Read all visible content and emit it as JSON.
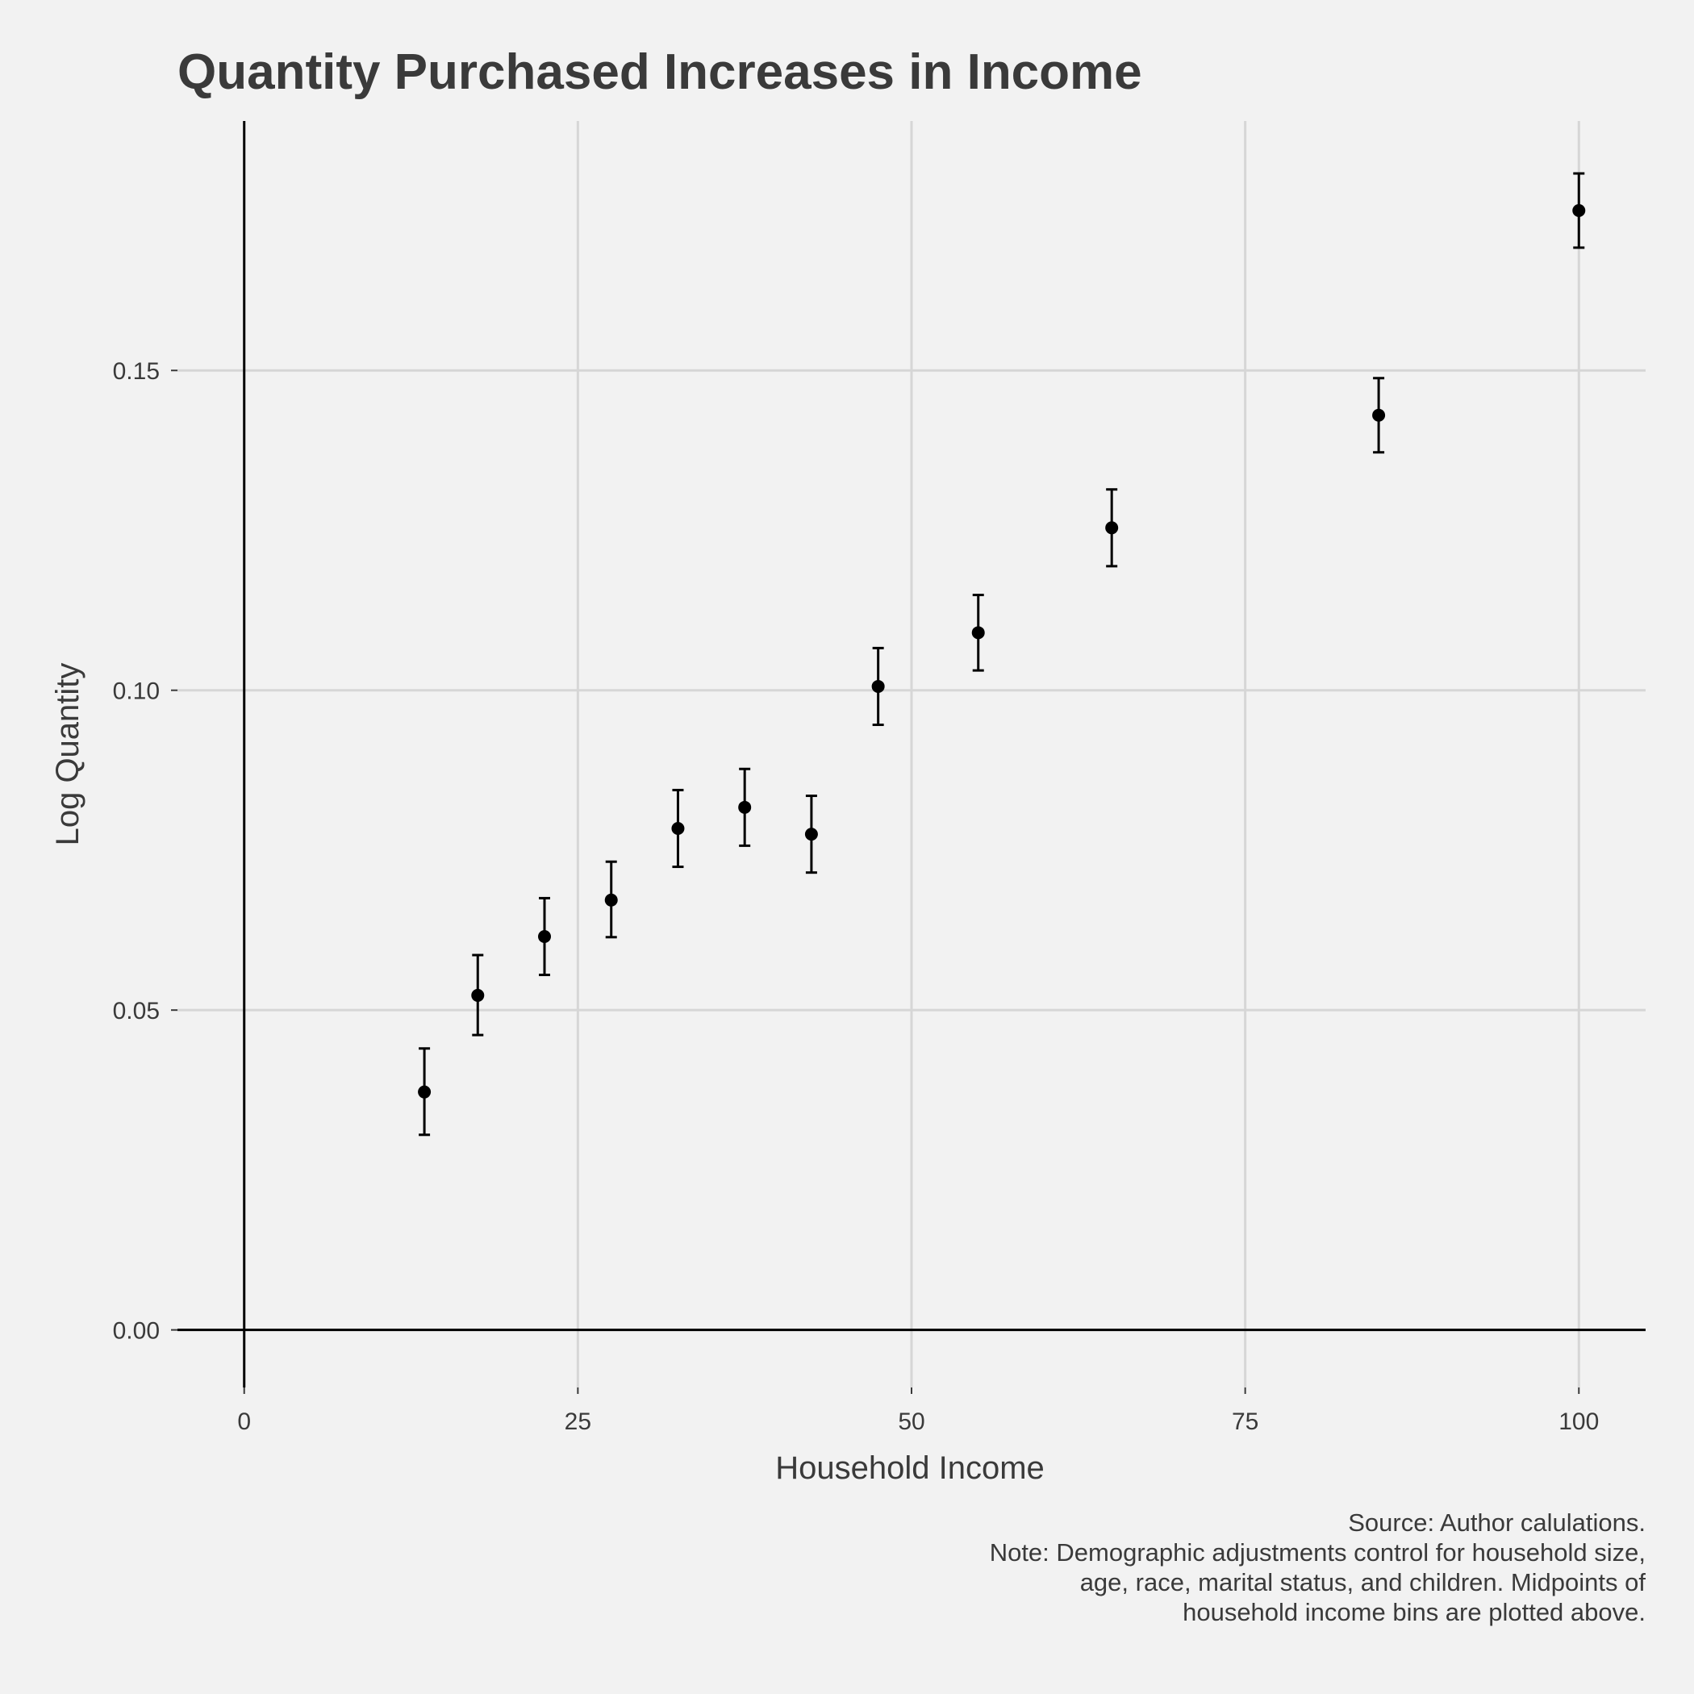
{
  "chart_data": {
    "type": "scatter",
    "title": "Quantity Purchased Increases in Income",
    "xlabel": "Household Income",
    "ylabel": "Log Quantity",
    "xlim": [
      -5,
      105
    ],
    "ylim": [
      -0.009,
      0.189
    ],
    "x_ticks": [
      0,
      25,
      50,
      75,
      100
    ],
    "x_tick_labels": [
      "0",
      "25",
      "50",
      "75",
      "100"
    ],
    "y_ticks": [
      0.0,
      0.05,
      0.1,
      0.15
    ],
    "y_tick_labels": [
      "0.00",
      "0.05",
      "0.10",
      "0.15"
    ],
    "grid": true,
    "legend": "none",
    "points": [
      {
        "x": 13.5,
        "y": 0.0372,
        "lo": 0.0305,
        "hi": 0.044
      },
      {
        "x": 17.5,
        "y": 0.0523,
        "lo": 0.0461,
        "hi": 0.0586
      },
      {
        "x": 22.5,
        "y": 0.0615,
        "lo": 0.0555,
        "hi": 0.0675
      },
      {
        "x": 27.5,
        "y": 0.0672,
        "lo": 0.0614,
        "hi": 0.0732
      },
      {
        "x": 32.5,
        "y": 0.0784,
        "lo": 0.0724,
        "hi": 0.0844
      },
      {
        "x": 37.5,
        "y": 0.0817,
        "lo": 0.0757,
        "hi": 0.0877
      },
      {
        "x": 42.5,
        "y": 0.0775,
        "lo": 0.0715,
        "hi": 0.0835
      },
      {
        "x": 47.5,
        "y": 0.1006,
        "lo": 0.0946,
        "hi": 0.1066
      },
      {
        "x": 55.0,
        "y": 0.109,
        "lo": 0.1031,
        "hi": 0.1149
      },
      {
        "x": 65.0,
        "y": 0.1254,
        "lo": 0.1194,
        "hi": 0.1314
      },
      {
        "x": 85.0,
        "y": 0.143,
        "lo": 0.1372,
        "hi": 0.1488
      },
      {
        "x": 100.0,
        "y": 0.175,
        "lo": 0.1692,
        "hi": 0.1808
      }
    ]
  },
  "caption": {
    "lines": [
      "Source: Author calulations.",
      "Note: Demographic adjustments control for household size,",
      "age, race, marital status, and children. Midpoints of",
      "household income bins are plotted above."
    ]
  }
}
